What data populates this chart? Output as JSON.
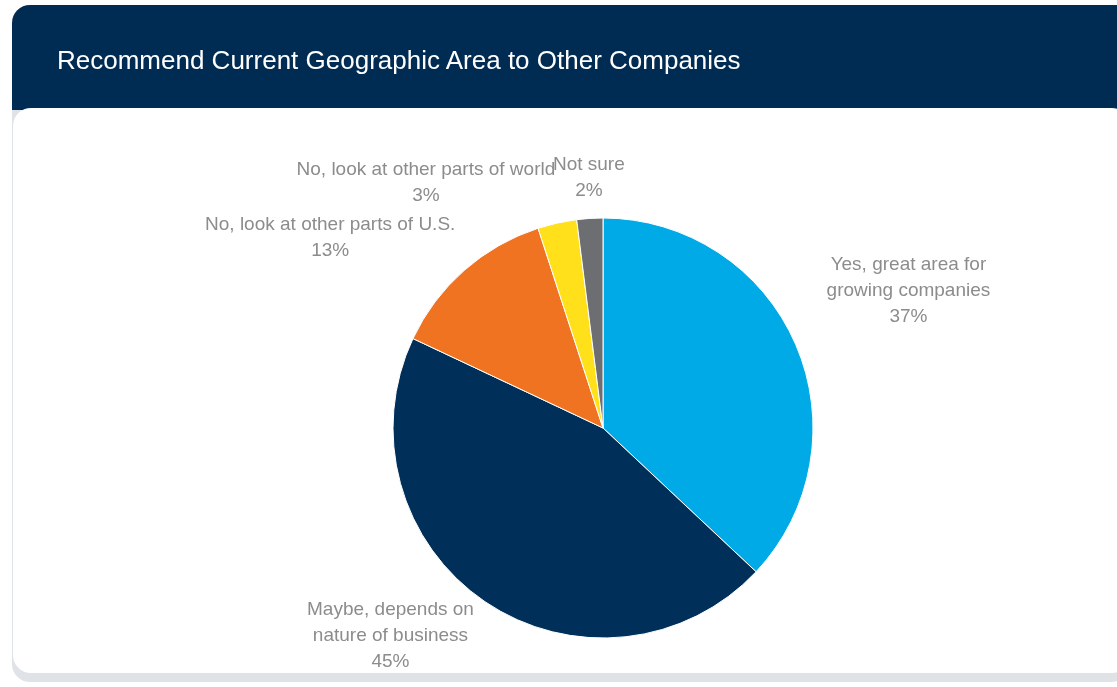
{
  "chart_data": {
    "type": "pie",
    "title": "Recommend Current Geographic Area to Other Companies",
    "categories": [
      "Yes, great area for growing companies",
      "Maybe, depends on nature of business",
      "No, look at other parts of U.S.",
      "No, look at other parts of world",
      "Not sure"
    ],
    "values": [
      37,
      45,
      13,
      3,
      2
    ],
    "colors": [
      "#00aae7",
      "#00305a",
      "#f07322",
      "#ffe01b",
      "#6d6e71"
    ],
    "value_labels": [
      "37%",
      "45%",
      "13%",
      "3%",
      "2%"
    ]
  }
}
